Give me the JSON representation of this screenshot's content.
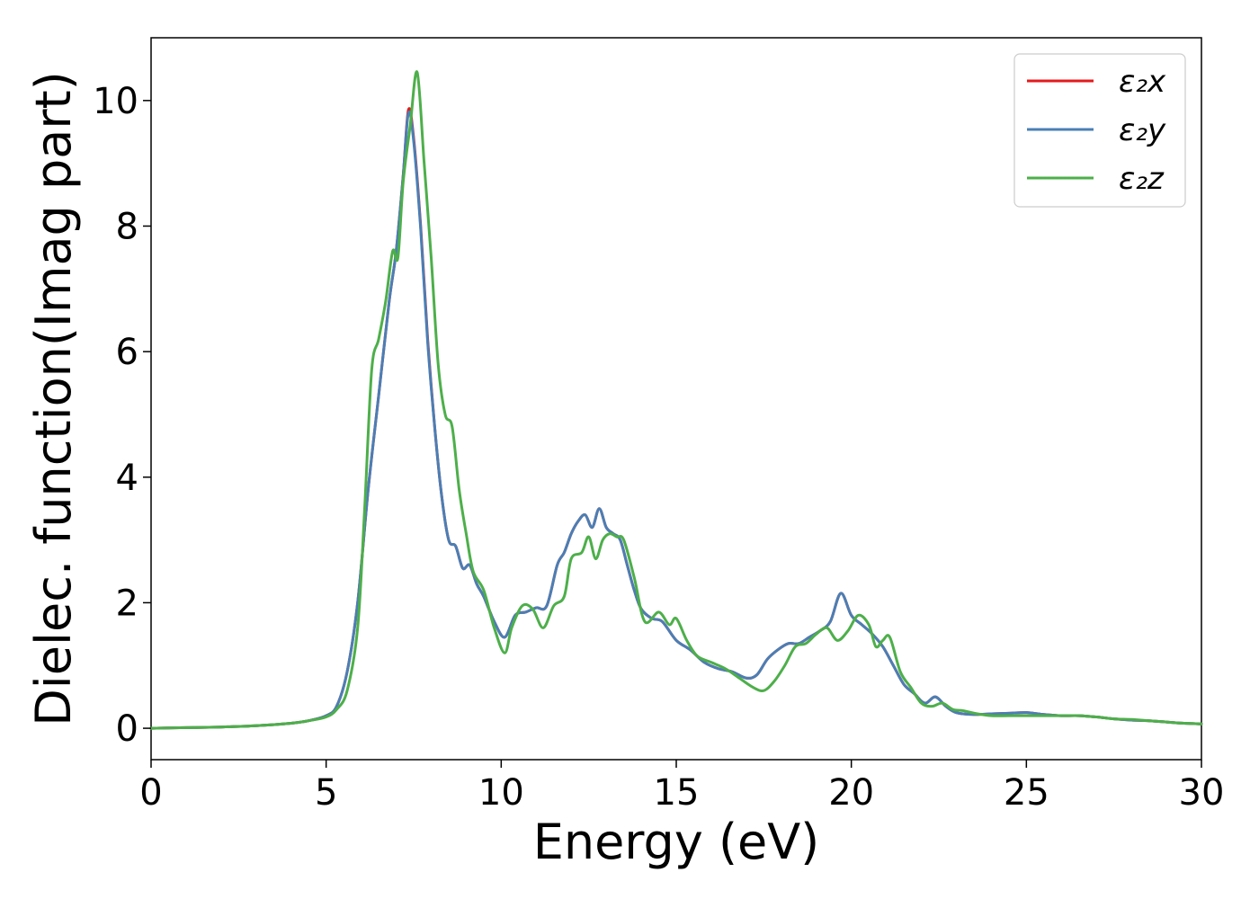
{
  "chart_data": {
    "type": "line",
    "title": "",
    "xlabel": "Energy (eV)",
    "ylabel": "Dielec. function(Imag part)",
    "xlim": [
      0,
      30
    ],
    "ylim": [
      -0.5,
      11
    ],
    "xticks": [
      0,
      5,
      10,
      15,
      20,
      25,
      30
    ],
    "yticks": [
      0,
      2,
      4,
      6,
      8,
      10
    ],
    "grid": false,
    "legend_position": "top-right",
    "series": [
      {
        "name": "ε₂x",
        "color": "#e41a1c",
        "x": [
          0,
          1,
          2,
          3,
          4,
          4.5,
          5,
          5.3,
          5.6,
          5.9,
          6.2,
          6.5,
          6.8,
          7.0,
          7.2,
          7.35,
          7.5,
          7.7,
          7.9,
          8.1,
          8.3,
          8.5,
          8.7,
          8.9,
          9.1,
          9.3,
          9.5,
          9.8,
          10.1,
          10.4,
          10.7,
          11.0,
          11.3,
          11.6,
          11.8,
          12.0,
          12.2,
          12.4,
          12.6,
          12.8,
          13.0,
          13.2,
          13.4,
          13.6,
          13.8,
          14.0,
          14.3,
          14.6,
          15.0,
          15.4,
          15.8,
          16.2,
          16.6,
          17.0,
          17.3,
          17.6,
          17.9,
          18.2,
          18.5,
          18.8,
          19.1,
          19.4,
          19.7,
          20.0,
          20.3,
          20.6,
          20.9,
          21.2,
          21.5,
          21.8,
          22.1,
          22.4,
          22.7,
          23.0,
          23.5,
          24.0,
          24.5,
          25.0,
          25.5,
          26.0,
          26.5,
          27.0,
          27.5,
          28.0,
          28.5,
          29.0,
          29.5,
          30.0
        ],
        "values": [
          0.0,
          0.01,
          0.02,
          0.04,
          0.08,
          0.12,
          0.2,
          0.35,
          0.9,
          2.0,
          3.8,
          5.3,
          6.8,
          7.6,
          8.8,
          9.85,
          9.4,
          8.0,
          6.2,
          4.8,
          3.7,
          3.0,
          2.9,
          2.55,
          2.6,
          2.3,
          2.1,
          1.7,
          1.45,
          1.8,
          1.85,
          1.92,
          1.95,
          2.6,
          2.8,
          3.1,
          3.3,
          3.4,
          3.2,
          3.5,
          3.2,
          3.1,
          3.0,
          2.6,
          2.2,
          1.9,
          1.75,
          1.7,
          1.4,
          1.25,
          1.05,
          0.95,
          0.9,
          0.8,
          0.85,
          1.1,
          1.25,
          1.35,
          1.35,
          1.45,
          1.55,
          1.7,
          2.15,
          1.8,
          1.65,
          1.5,
          1.3,
          1.0,
          0.7,
          0.55,
          0.4,
          0.5,
          0.35,
          0.25,
          0.22,
          0.23,
          0.24,
          0.25,
          0.22,
          0.2,
          0.2,
          0.18,
          0.15,
          0.13,
          0.12,
          0.1,
          0.08,
          0.07
        ]
      },
      {
        "name": "ε₂y",
        "color": "#4a7fb5",
        "x": [
          0,
          1,
          2,
          3,
          4,
          4.5,
          5,
          5.3,
          5.6,
          5.9,
          6.2,
          6.5,
          6.8,
          7.0,
          7.2,
          7.35,
          7.5,
          7.7,
          7.9,
          8.1,
          8.3,
          8.5,
          8.7,
          8.9,
          9.1,
          9.3,
          9.5,
          9.8,
          10.1,
          10.4,
          10.7,
          11.0,
          11.3,
          11.6,
          11.8,
          12.0,
          12.2,
          12.4,
          12.6,
          12.8,
          13.0,
          13.2,
          13.4,
          13.6,
          13.8,
          14.0,
          14.3,
          14.6,
          15.0,
          15.4,
          15.8,
          16.2,
          16.6,
          17.0,
          17.3,
          17.6,
          17.9,
          18.2,
          18.5,
          18.8,
          19.1,
          19.4,
          19.7,
          20.0,
          20.3,
          20.6,
          20.9,
          21.2,
          21.5,
          21.8,
          22.1,
          22.4,
          22.7,
          23.0,
          23.5,
          24.0,
          24.5,
          25.0,
          25.5,
          26.0,
          26.5,
          27.0,
          27.5,
          28.0,
          28.5,
          29.0,
          29.5,
          30.0
        ],
        "values": [
          0.0,
          0.01,
          0.02,
          0.04,
          0.08,
          0.12,
          0.2,
          0.35,
          0.9,
          2.0,
          3.8,
          5.3,
          6.8,
          7.6,
          8.8,
          9.8,
          9.35,
          7.95,
          6.15,
          4.8,
          3.7,
          3.0,
          2.9,
          2.55,
          2.6,
          2.3,
          2.1,
          1.7,
          1.45,
          1.8,
          1.85,
          1.92,
          1.95,
          2.6,
          2.8,
          3.1,
          3.3,
          3.4,
          3.2,
          3.5,
          3.2,
          3.1,
          3.0,
          2.6,
          2.2,
          1.9,
          1.75,
          1.7,
          1.4,
          1.25,
          1.05,
          0.95,
          0.9,
          0.8,
          0.85,
          1.1,
          1.25,
          1.35,
          1.35,
          1.45,
          1.55,
          1.7,
          2.15,
          1.8,
          1.65,
          1.5,
          1.3,
          1.0,
          0.7,
          0.55,
          0.4,
          0.5,
          0.35,
          0.25,
          0.22,
          0.23,
          0.24,
          0.25,
          0.22,
          0.2,
          0.2,
          0.18,
          0.15,
          0.13,
          0.12,
          0.1,
          0.08,
          0.07
        ]
      },
      {
        "name": "ε₂z",
        "color": "#4daf4a",
        "x": [
          0,
          1,
          2,
          3,
          4,
          4.5,
          5,
          5.3,
          5.6,
          5.9,
          6.1,
          6.3,
          6.5,
          6.7,
          6.9,
          7.05,
          7.2,
          7.4,
          7.6,
          7.8,
          8.0,
          8.2,
          8.4,
          8.6,
          8.8,
          9.0,
          9.2,
          9.5,
          9.8,
          10.1,
          10.3,
          10.6,
          10.9,
          11.2,
          11.5,
          11.8,
          12.0,
          12.3,
          12.5,
          12.7,
          12.9,
          13.1,
          13.3,
          13.5,
          13.8,
          14.1,
          14.5,
          14.8,
          15.0,
          15.3,
          15.6,
          16.0,
          16.4,
          16.8,
          17.2,
          17.5,
          17.8,
          18.1,
          18.4,
          18.7,
          19.0,
          19.3,
          19.6,
          19.9,
          20.2,
          20.5,
          20.7,
          20.9,
          21.1,
          21.4,
          21.7,
          22.0,
          22.3,
          22.6,
          22.9,
          23.2,
          23.6,
          24.0,
          24.5,
          25.0,
          25.5,
          26.0,
          26.5,
          27.0,
          27.5,
          28.0,
          28.5,
          29.0,
          29.5,
          30.0
        ],
        "values": [
          0.0,
          0.01,
          0.02,
          0.04,
          0.08,
          0.12,
          0.18,
          0.3,
          0.6,
          1.6,
          3.5,
          5.7,
          6.2,
          6.8,
          7.6,
          7.5,
          8.7,
          9.6,
          10.45,
          9.0,
          7.5,
          5.8,
          5.0,
          4.8,
          3.8,
          3.1,
          2.5,
          2.2,
          1.6,
          1.2,
          1.6,
          1.95,
          1.9,
          1.6,
          1.95,
          2.1,
          2.7,
          2.8,
          3.05,
          2.7,
          3.0,
          3.1,
          3.05,
          3.0,
          2.4,
          1.7,
          1.85,
          1.65,
          1.75,
          1.4,
          1.15,
          1.05,
          0.95,
          0.8,
          0.65,
          0.6,
          0.75,
          1.0,
          1.3,
          1.35,
          1.5,
          1.6,
          1.4,
          1.55,
          1.8,
          1.65,
          1.3,
          1.4,
          1.45,
          0.9,
          0.65,
          0.4,
          0.35,
          0.4,
          0.3,
          0.28,
          0.23,
          0.2,
          0.2,
          0.2,
          0.2,
          0.2,
          0.2,
          0.18,
          0.15,
          0.14,
          0.12,
          0.1,
          0.08,
          0.07
        ]
      }
    ]
  }
}
